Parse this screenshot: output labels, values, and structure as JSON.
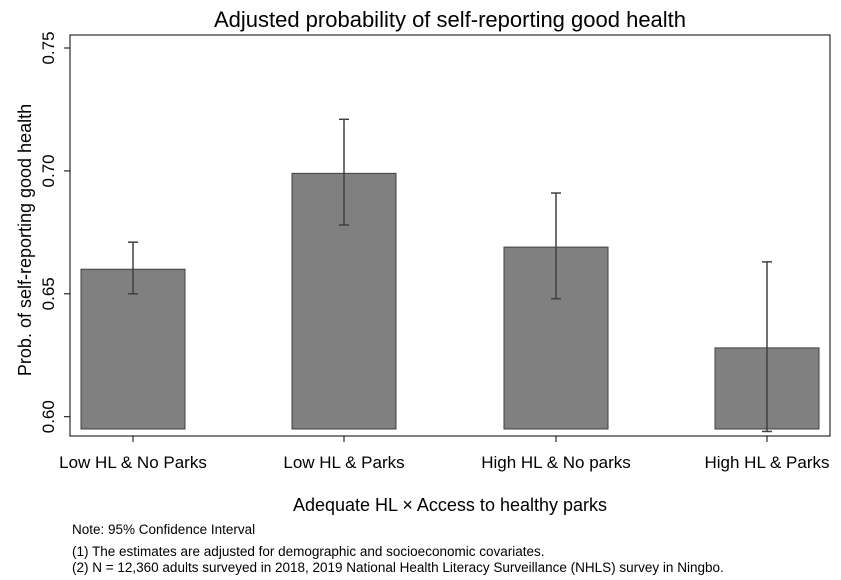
{
  "chart_data": {
    "type": "bar",
    "title": "Adjusted probability of self-reporting good health",
    "xlabel": "Adequate HL × Access to healthy parks",
    "ylabel": "Prob. of self-reporting good health",
    "categories": [
      "Low HL & No Parks",
      "Low HL & Parks",
      "High HL & No parks",
      "High HL & Parks"
    ],
    "values": [
      0.66,
      0.699,
      0.669,
      0.628
    ],
    "ci_low": [
      0.65,
      0.678,
      0.648,
      0.594
    ],
    "ci_high": [
      0.671,
      0.721,
      0.691,
      0.663
    ],
    "bar_base": 0.595,
    "ylim": [
      0.595,
      0.75
    ],
    "yticks": [
      "0.60",
      "0.65",
      "0.70",
      "0.75"
    ],
    "ytick_values": [
      0.6,
      0.65,
      0.7,
      0.75
    ],
    "grid": false,
    "bar_color": "#808080",
    "bar_edge_color": "#404040",
    "errorbar_color": "#404040"
  },
  "notes": {
    "note_line": "Note: 95% Confidence Interval",
    "line1": "(1) The estimates are adjusted for demographic and socioeconomic covariates.",
    "line2": "(2) N = 12,360 adults surveyed in 2018, 2019 National Health Literacy Surveillance (NHLS) survey in Ningbo."
  }
}
